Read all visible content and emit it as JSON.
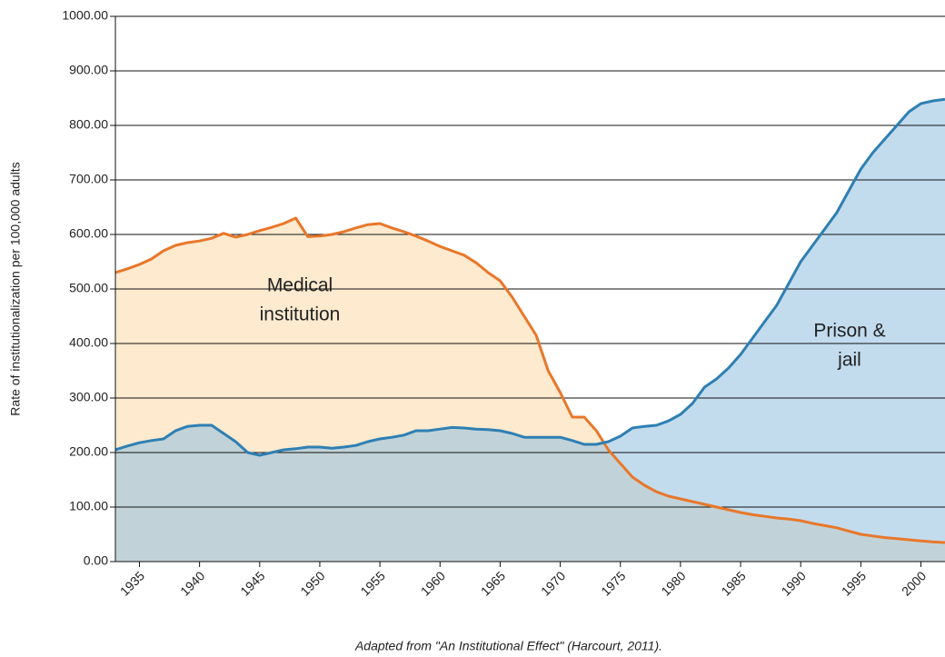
{
  "chart_data": {
    "type": "area",
    "y_label": "Rate of institutionalization per 100,000 adults",
    "source": "Adapted from \"An Institutional Effect\" (Harcourt, 2011).",
    "x": [
      1933,
      1934,
      1935,
      1936,
      1937,
      1938,
      1939,
      1940,
      1941,
      1942,
      1943,
      1944,
      1945,
      1946,
      1947,
      1948,
      1949,
      1950,
      1951,
      1952,
      1953,
      1954,
      1955,
      1956,
      1957,
      1958,
      1959,
      1960,
      1961,
      1962,
      1963,
      1964,
      1965,
      1966,
      1967,
      1968,
      1969,
      1970,
      1971,
      1972,
      1973,
      1974,
      1975,
      1976,
      1977,
      1978,
      1979,
      1980,
      1981,
      1982,
      1983,
      1984,
      1985,
      1986,
      1987,
      1988,
      1989,
      1990,
      1991,
      1992,
      1993,
      1994,
      1995,
      1996,
      1997,
      1998,
      1999,
      2000,
      2001,
      2002
    ],
    "series": [
      {
        "color": "#e8772a",
        "fill": "#fcd9a8",
        "annotation": [
          "Medical",
          "institution"
        ],
        "values": [
          530,
          537,
          545,
          555,
          570,
          580,
          585,
          588,
          593,
          602,
          595,
          600,
          607,
          613,
          620,
          630,
          596,
          597,
          600,
          605,
          612,
          618,
          620,
          612,
          605,
          597,
          588,
          578,
          570,
          562,
          548,
          530,
          515,
          485,
          450,
          415,
          350,
          310,
          265,
          265,
          240,
          205,
          180,
          155,
          140,
          128,
          120,
          115,
          110,
          105,
          100,
          95,
          90,
          86,
          83,
          80,
          78,
          75,
          70,
          66,
          62,
          56,
          50,
          47,
          44,
          42,
          40,
          38,
          36,
          35
        ]
      },
      {
        "color": "#2f7fb3",
        "fill": "#8fbfe0",
        "annotation": [
          "Prison &",
          "jail"
        ],
        "values": [
          205,
          212,
          218,
          222,
          225,
          240,
          248,
          250,
          250,
          235,
          220,
          200,
          195,
          200,
          205,
          207,
          210,
          210,
          208,
          210,
          213,
          220,
          225,
          228,
          232,
          240,
          240,
          243,
          246,
          245,
          243,
          242,
          240,
          235,
          228,
          228,
          228,
          228,
          222,
          215,
          215,
          220,
          230,
          245,
          248,
          250,
          258,
          270,
          290,
          320,
          335,
          355,
          380,
          410,
          440,
          470,
          510,
          550,
          580,
          610,
          640,
          680,
          720,
          750,
          775,
          800,
          825,
          840,
          845,
          848
        ]
      }
    ],
    "xlim": [
      1933,
      2002
    ],
    "xticks": [
      1935,
      1940,
      1945,
      1950,
      1955,
      1960,
      1965,
      1970,
      1975,
      1980,
      1985,
      1990,
      1995,
      2000
    ],
    "ylim": [
      0,
      1000
    ],
    "yticks": [
      {
        "value": 0,
        "label": "0.00"
      },
      {
        "value": 100,
        "label": "100.00"
      },
      {
        "value": 200,
        "label": "200.00"
      },
      {
        "value": 300,
        "label": "300.00"
      },
      {
        "value": 400,
        "label": "400.00"
      },
      {
        "value": 500,
        "label": "500.00"
      },
      {
        "value": 600,
        "label": "600.00"
      },
      {
        "value": 700,
        "label": "700.00"
      },
      {
        "value": 800,
        "label": "800.00"
      },
      {
        "value": 900,
        "label": "900.00"
      },
      {
        "value": 1000,
        "label": "1000.00"
      }
    ],
    "grid": true
  }
}
